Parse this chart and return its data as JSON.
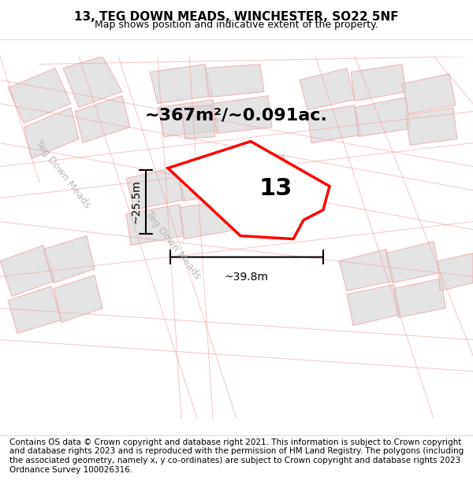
{
  "title": "13, TEG DOWN MEADS, WINCHESTER, SO22 5NF",
  "subtitle": "Map shows position and indicative extent of the property.",
  "footer": "Contains OS data © Crown copyright and database right 2021. This information is subject to Crown copyright and database rights 2023 and is reproduced with the permission of HM Land Registry. The polygons (including the associated geometry, namely x, y co-ordinates) are subject to Crown copyright and database rights 2023 Ordnance Survey 100026316.",
  "area_text": "~367m²/~0.091ac.",
  "label_number": "13",
  "dim_width": "~39.8m",
  "dim_height": "~25.5m",
  "bg_color": "#f5f5f5",
  "map_bg": "#ffffff",
  "road_label1": "Teg Down Meads",
  "road_label2": "Teg Down Meads",
  "plot_color": "#ff0000",
  "plot_fill": "#ffffff",
  "block_color": "#d8d8d8",
  "road_line_color": "#f0a0a0",
  "title_fontsize": 11,
  "subtitle_fontsize": 9,
  "footer_fontsize": 7.5
}
